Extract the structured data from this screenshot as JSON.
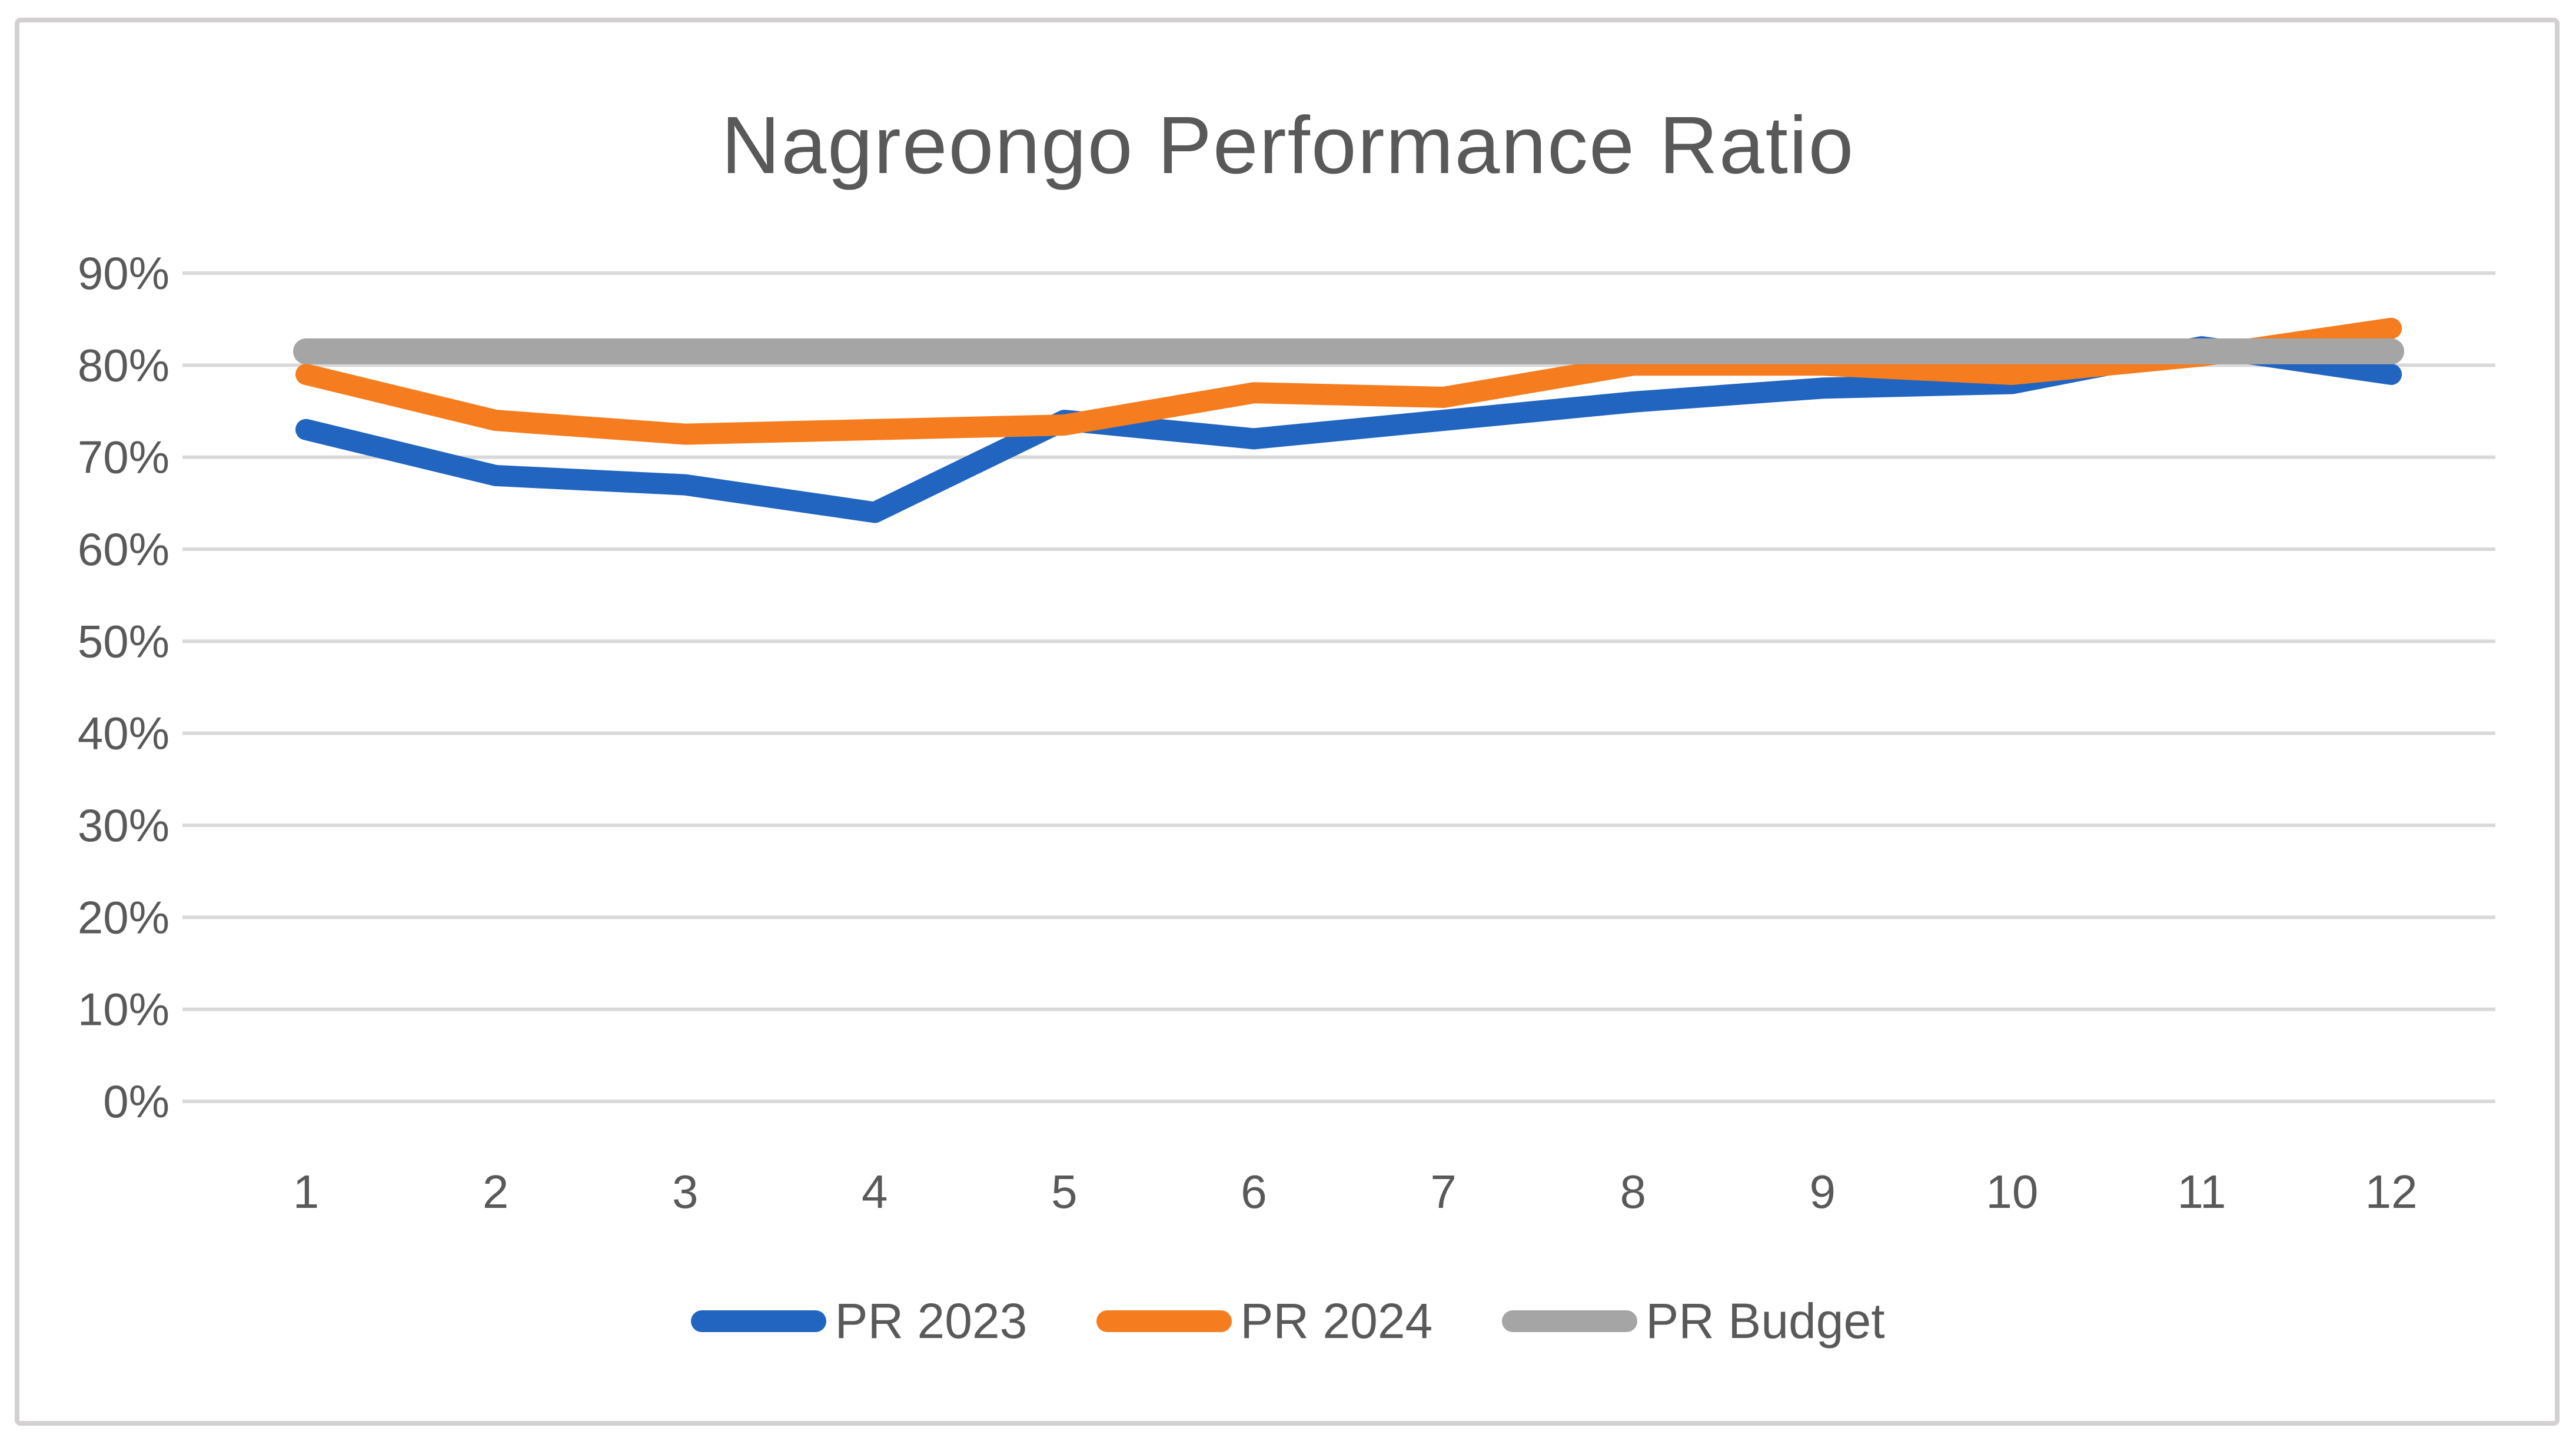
{
  "chart_data": {
    "type": "line",
    "title": "Nagreongo Performance Ratio",
    "categories": [
      "1",
      "2",
      "3",
      "4",
      "5",
      "6",
      "7",
      "8",
      "9",
      "10",
      "11",
      "12"
    ],
    "series": [
      {
        "name": "PR 2023",
        "color": "#2165c0",
        "stroke_width": 36,
        "values": [
          73,
          68,
          67,
          64,
          74,
          72,
          74,
          76,
          77.5,
          78,
          82,
          79
        ]
      },
      {
        "name": "PR 2024",
        "color": "#f57d1f",
        "stroke_width": 36,
        "values": [
          79,
          74,
          72.5,
          73,
          73.5,
          77,
          76.5,
          80,
          80,
          79,
          81,
          84
        ]
      },
      {
        "name": "PR Budget",
        "color": "#a5a5a5",
        "stroke_width": 44,
        "values": [
          81.5,
          81.5,
          81.5,
          81.5,
          81.5,
          81.5,
          81.5,
          81.5,
          81.5,
          81.5,
          81.5,
          81.5
        ]
      }
    ],
    "ylim": [
      0,
      90
    ],
    "ytick_step": 10,
    "ytick_labels": [
      "0%",
      "10%",
      "20%",
      "30%",
      "40%",
      "50%",
      "60%",
      "70%",
      "80%",
      "90%"
    ],
    "xlabel": "",
    "ylabel": "",
    "grid": true,
    "legend_position": "bottom",
    "gridline_color": "#d9d9d9",
    "tick_label_color": "#595959",
    "title_color": "#595959"
  }
}
